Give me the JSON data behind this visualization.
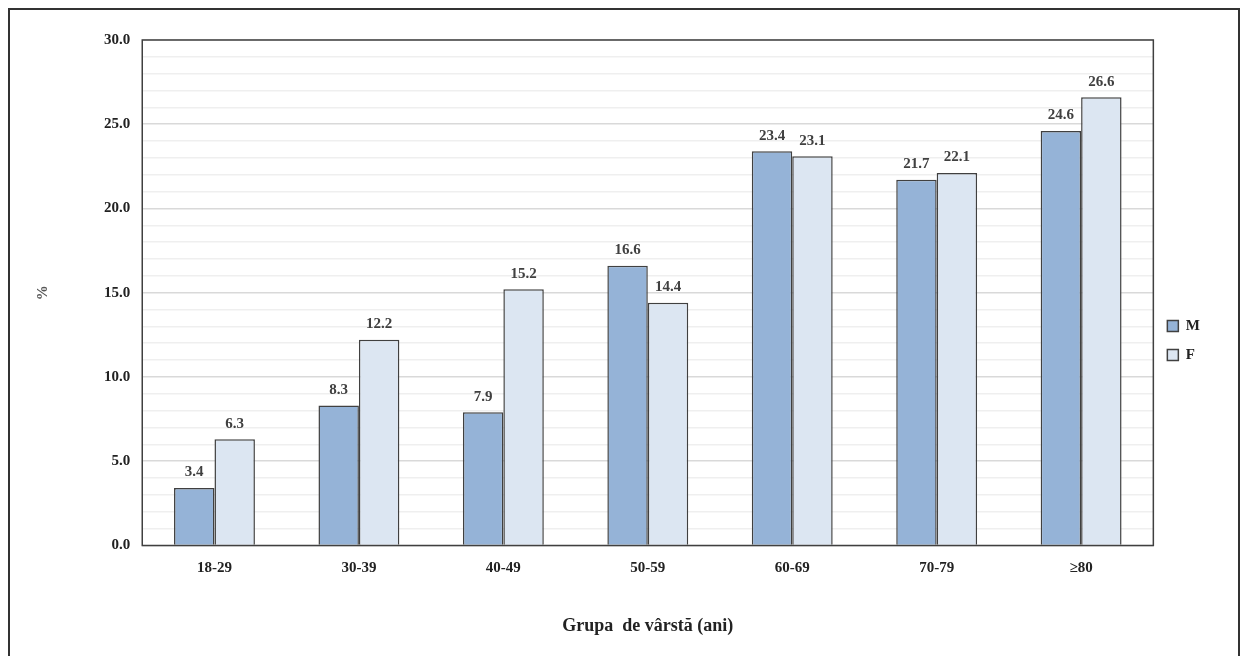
{
  "chart_data": {
    "type": "bar",
    "xlabel": "Grupa  de vârstă (ani)",
    "ylabel": "%",
    "categories": [
      "18-29",
      "30-39",
      "40-49",
      "50-59",
      "60-69",
      "70-79",
      "≥80"
    ],
    "series": [
      {
        "name": "M",
        "color": "#95b3d7",
        "values": [
          3.4,
          8.3,
          7.9,
          16.6,
          23.4,
          21.7,
          24.6
        ]
      },
      {
        "name": "F",
        "color": "#dce6f2",
        "values": [
          6.3,
          12.2,
          15.2,
          14.4,
          23.1,
          22.1,
          26.6
        ]
      }
    ],
    "ylim": [
      0,
      30
    ],
    "yticks": [
      {
        "value": 0,
        "label": "0.0"
      },
      {
        "value": 1,
        "label": null
      },
      {
        "value": 2,
        "label": null
      },
      {
        "value": 3,
        "label": null
      },
      {
        "value": 4,
        "label": null
      },
      {
        "value": 5,
        "label": "5.0"
      },
      {
        "value": 6,
        "label": null
      },
      {
        "value": 7,
        "label": null
      },
      {
        "value": 8,
        "label": null
      },
      {
        "value": 9,
        "label": null
      },
      {
        "value": 10,
        "label": "10.0"
      },
      {
        "value": 11,
        "label": null
      },
      {
        "value": 12,
        "label": null
      },
      {
        "value": 13,
        "label": null
      },
      {
        "value": 14,
        "label": null
      },
      {
        "value": 15,
        "label": "15.0"
      },
      {
        "value": 16,
        "label": null
      },
      {
        "value": 17,
        "label": null
      },
      {
        "value": 18,
        "label": null
      },
      {
        "value": 19,
        "label": null
      },
      {
        "value": 20,
        "label": "20.0"
      },
      {
        "value": 21,
        "label": null
      },
      {
        "value": 22,
        "label": null
      },
      {
        "value": 23,
        "label": null
      },
      {
        "value": 24,
        "label": null
      },
      {
        "value": 25,
        "label": "25.0"
      },
      {
        "value": 26,
        "label": null
      },
      {
        "value": 27,
        "label": null
      },
      {
        "value": 28,
        "label": null
      },
      {
        "value": 29,
        "label": null
      },
      {
        "value": 30,
        "label": "30.0"
      }
    ],
    "grid": "y",
    "legend": "right",
    "data_labels": true
  }
}
